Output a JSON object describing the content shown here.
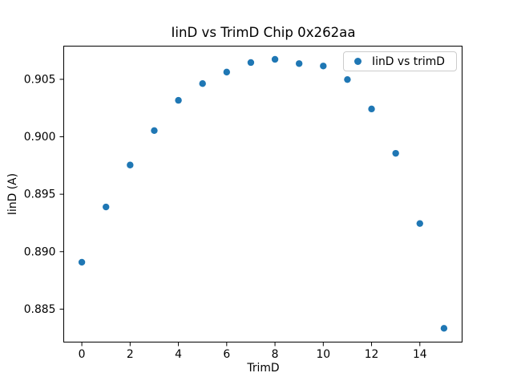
{
  "figure": {
    "background": "#ffffff"
  },
  "chart_data": {
    "type": "scatter",
    "title": "IinD vs TrimD Chip 0x262aa",
    "xlabel": "TrimD",
    "ylabel": "IinD (A)",
    "x": [
      0,
      1,
      2,
      3,
      4,
      5,
      6,
      7,
      8,
      9,
      10,
      11,
      12,
      13,
      14,
      15
    ],
    "series": [
      {
        "name": "IinD vs trimD",
        "values": [
          0.88908,
          0.89389,
          0.89754,
          0.90054,
          0.90317,
          0.90463,
          0.90563,
          0.90646,
          0.90674,
          0.90637,
          0.90616,
          0.90498,
          0.90242,
          0.89856,
          0.89245,
          0.88333
        ],
        "color": "#1f77b4",
        "marker": "circle"
      }
    ],
    "xlim": [
      -0.75,
      15.75
    ],
    "ylim": [
      0.88213,
      0.90789
    ],
    "xticks": [
      0,
      2,
      4,
      6,
      8,
      10,
      12,
      14
    ],
    "yticks": [
      0.885,
      0.89,
      0.895,
      0.9,
      0.905
    ],
    "ytick_labels": [
      "0.885",
      "0.890",
      "0.895",
      "0.900",
      "0.905"
    ],
    "grid": false,
    "legend": {
      "location": "upper right",
      "entries": [
        {
          "label": "IinD vs trimD",
          "marker_color": "#1f77b4"
        }
      ]
    }
  },
  "colors": {
    "marker": "#1f77b4",
    "spine": "#000000",
    "tick_text": "#000000",
    "legend_border": "#cccccc"
  }
}
